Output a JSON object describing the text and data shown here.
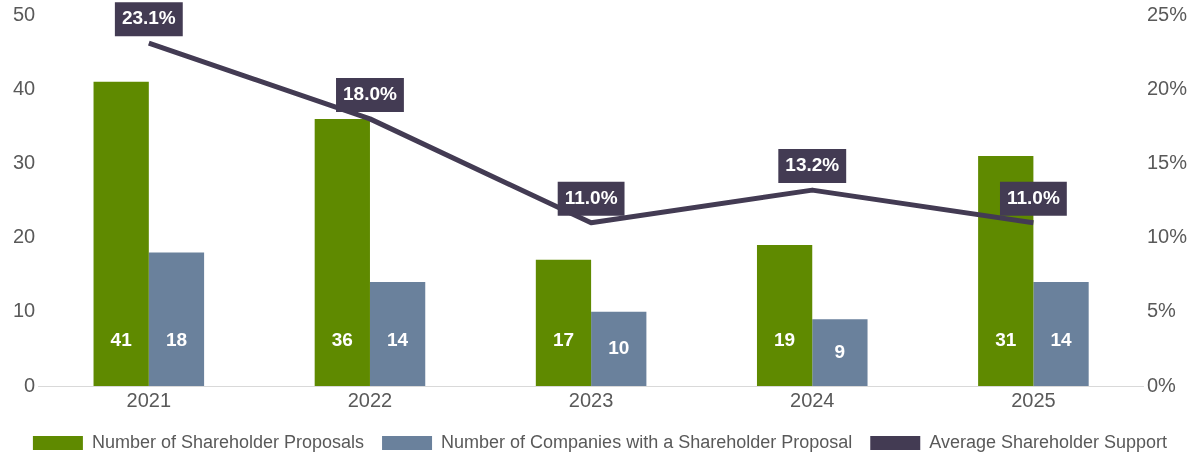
{
  "chart_data": {
    "type": "bar",
    "categories": [
      "2021",
      "2022",
      "2023",
      "2024",
      "2025"
    ],
    "series": [
      {
        "name": "Number of Shareholder Proposals",
        "color": "#5f8a00",
        "values": [
          41,
          36,
          17,
          19,
          31
        ],
        "value_labels": [
          "41",
          "36",
          "17",
          "19",
          "31"
        ]
      },
      {
        "name": "Number of Companies with a Shareholder Proposal",
        "color": "#6a819c",
        "values": [
          18,
          14,
          10,
          9,
          14
        ],
        "value_labels": [
          "18",
          "14",
          "10",
          "9",
          "14"
        ]
      },
      {
        "name": "Average Shareholder Support",
        "type": "line",
        "axis": "y2",
        "color": "#433b53",
        "values": [
          23.1,
          18.0,
          11.0,
          13.2,
          11.0
        ],
        "value_labels": [
          "23.1%",
          "18.0%",
          "11.0%",
          "13.2%",
          "11.0%"
        ]
      }
    ],
    "ylim": [
      0,
      50
    ],
    "yticks": [
      0,
      10,
      20,
      30,
      40,
      50
    ],
    "y2lim": [
      0,
      25
    ],
    "y2ticks": [
      {
        "value": 0,
        "label": "0%"
      },
      {
        "value": 5,
        "label": "5%"
      },
      {
        "value": 10,
        "label": "10%"
      },
      {
        "value": 15,
        "label": "15%"
      },
      {
        "value": 20,
        "label": "20%"
      },
      {
        "value": 25,
        "label": "25%"
      }
    ],
    "grid": false,
    "legend": "bottom"
  }
}
